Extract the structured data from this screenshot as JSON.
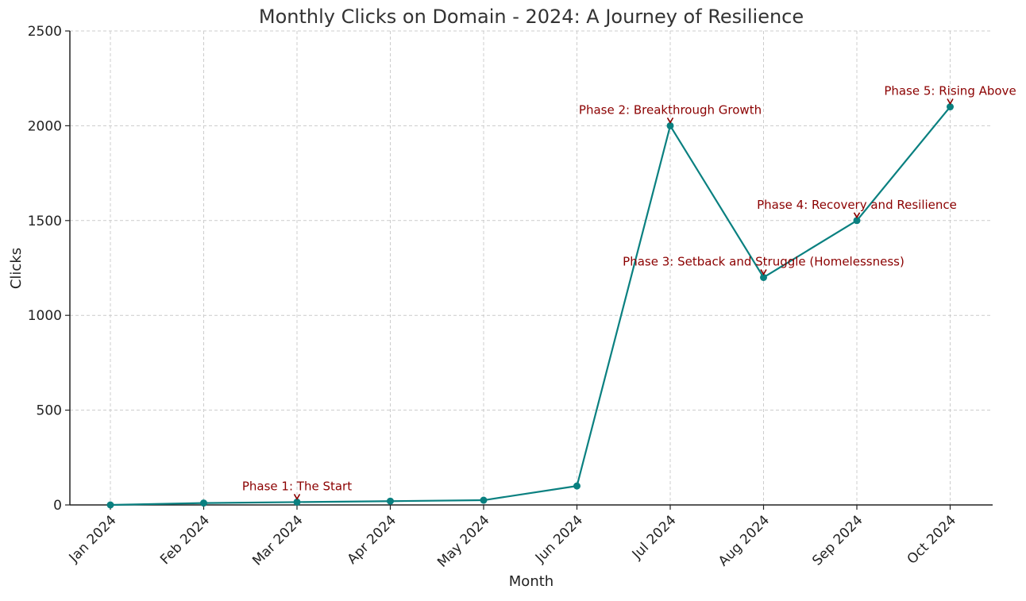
{
  "chart_data": {
    "type": "line",
    "title": "Monthly Clicks on Domain - 2024: A Journey of Resilience",
    "xlabel": "Month",
    "ylabel": "Clicks",
    "categories": [
      "Jan 2024",
      "Feb 2024",
      "Mar 2024",
      "Apr 2024",
      "May 2024",
      "Jun 2024",
      "Jul 2024",
      "Aug 2024",
      "Sep 2024",
      "Oct 2024"
    ],
    "series": [
      {
        "values": [
          0,
          10,
          15,
          20,
          25,
          100,
          2000,
          1200,
          1500,
          2100
        ],
        "color": "#0a8080"
      }
    ],
    "ylim": [
      0,
      2500
    ],
    "yticks": [
      0,
      500,
      1000,
      1500,
      2000,
      2500
    ],
    "grid": true,
    "annotations": [
      {
        "category": "Mar 2024",
        "value": 15,
        "text": "Phase 1: The Start"
      },
      {
        "category": "Jul 2024",
        "value": 2000,
        "text": "Phase 2: Breakthrough Growth"
      },
      {
        "category": "Aug 2024",
        "value": 1200,
        "text": "Phase 3: Setback and Struggle (Homelessness)"
      },
      {
        "category": "Sep 2024",
        "value": 1500,
        "text": "Phase 4: Recovery and Resilience"
      },
      {
        "category": "Oct 2024",
        "value": 2100,
        "text": "Phase 5: Rising Above"
      }
    ],
    "annotation_color": "#8b0000"
  }
}
